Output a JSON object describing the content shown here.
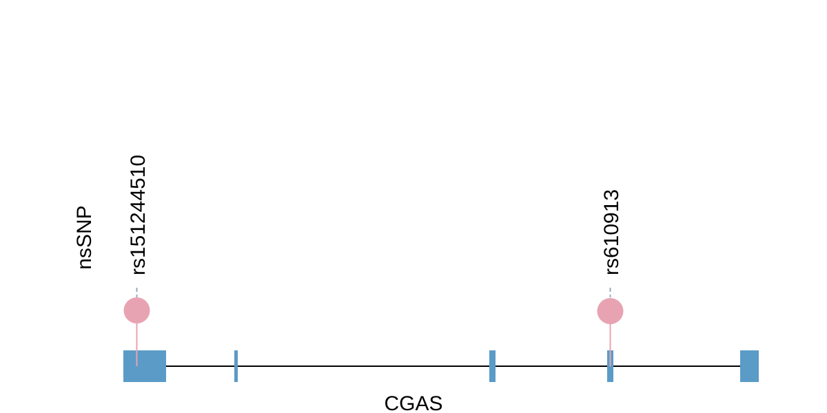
{
  "track_label": "nsSNP",
  "gene": {
    "name": "CGAS",
    "color": "#5b9bc7",
    "line_color": "#000000"
  },
  "snp_style": {
    "color": "#e8a3b2",
    "stem_color": "#e8a3b2"
  },
  "snps": [
    {
      "id": "rs151244510"
    },
    {
      "id": "rs610913"
    }
  ]
}
